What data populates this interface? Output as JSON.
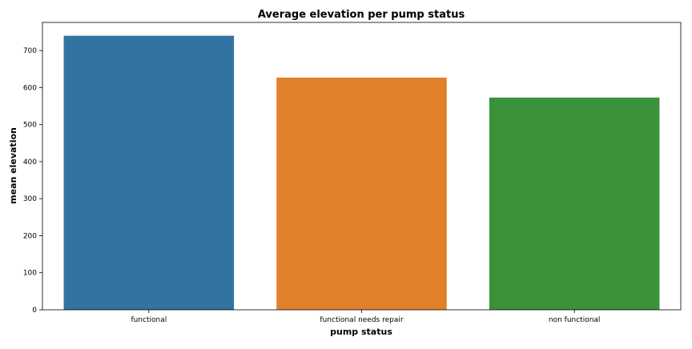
{
  "chart_data": {
    "type": "bar",
    "title": "Average elevation per pump status",
    "xlabel": "pump status",
    "ylabel": "mean elevation",
    "categories": [
      "functional",
      "functional needs repair",
      "non functional"
    ],
    "values": [
      740,
      627,
      573
    ],
    "colors": [
      "#3274a1",
      "#e1812c",
      "#3a923a"
    ],
    "ylim": [
      0,
      776
    ],
    "yticks": [
      0,
      100,
      200,
      300,
      400,
      500,
      600,
      700
    ],
    "grid": false,
    "legend": "none"
  }
}
